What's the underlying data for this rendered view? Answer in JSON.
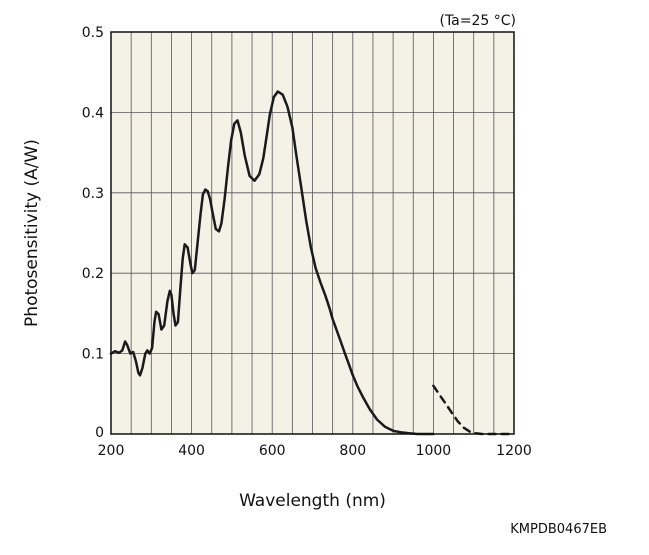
{
  "chart_data": {
    "type": "line",
    "condition_note": "(Ta=25 °C)",
    "xlabel": "Wavelength (nm)",
    "ylabel": "Photosensitivity (A/W)",
    "xlim": [
      200,
      1200
    ],
    "ylim": [
      0,
      0.5
    ],
    "x_ticks": [
      "200",
      "400",
      "600",
      "800",
      "1000",
      "1200"
    ],
    "y_ticks": [
      "0",
      "0.1",
      "0.2",
      "0.3",
      "0.4",
      "0.5"
    ],
    "grid": true,
    "plot_background": "#f4f1e7",
    "line_color": "#1a1a1a",
    "series": [
      {
        "style": "solid",
        "x": [
          200,
          210,
          220,
          228,
          235,
          240,
          248,
          255,
          262,
          268,
          272,
          278,
          285,
          290,
          296,
          302,
          308,
          312,
          318,
          325,
          332,
          340,
          346,
          350,
          355,
          360,
          366,
          372,
          378,
          383,
          390,
          397,
          402,
          408,
          415,
          422,
          428,
          434,
          440,
          446,
          452,
          460,
          468,
          474,
          482,
          490,
          498,
          506,
          514,
          522,
          532,
          544,
          556,
          568,
          578,
          586,
          594,
          604,
          614,
          626,
          638,
          650,
          660,
          672,
          684,
          696,
          708,
          720,
          732,
          742,
          750,
          760,
          770,
          780,
          790,
          800,
          812,
          826,
          842,
          860,
          880,
          900,
          920,
          940,
          960,
          980,
          1000
        ],
        "y": [
          0.1,
          0.103,
          0.101,
          0.104,
          0.115,
          0.111,
          0.1,
          0.102,
          0.09,
          0.076,
          0.073,
          0.082,
          0.1,
          0.104,
          0.1,
          0.107,
          0.14,
          0.152,
          0.149,
          0.13,
          0.135,
          0.165,
          0.178,
          0.173,
          0.15,
          0.135,
          0.139,
          0.18,
          0.218,
          0.236,
          0.232,
          0.212,
          0.2,
          0.204,
          0.238,
          0.273,
          0.298,
          0.304,
          0.302,
          0.292,
          0.275,
          0.255,
          0.252,
          0.262,
          0.292,
          0.331,
          0.365,
          0.386,
          0.39,
          0.375,
          0.346,
          0.321,
          0.315,
          0.323,
          0.343,
          0.37,
          0.397,
          0.419,
          0.426,
          0.422,
          0.407,
          0.381,
          0.346,
          0.307,
          0.266,
          0.232,
          0.206,
          0.188,
          0.172,
          0.157,
          0.143,
          0.129,
          0.115,
          0.101,
          0.087,
          0.073,
          0.059,
          0.045,
          0.031,
          0.018,
          0.009,
          0.004,
          0.002,
          0.001,
          0.0,
          0.0,
          0.0
        ]
      },
      {
        "style": "dashed",
        "x": [
          1000,
          1015,
          1030,
          1045,
          1060,
          1075,
          1090,
          1105,
          1120,
          1140,
          1160,
          1180,
          1200
        ],
        "y": [
          0.06,
          0.049,
          0.038,
          0.027,
          0.016,
          0.008,
          0.003,
          0.001,
          0.0,
          0.0,
          0.0,
          0.0,
          0.0
        ]
      }
    ]
  },
  "figure_code": "KMPDB0467EB"
}
